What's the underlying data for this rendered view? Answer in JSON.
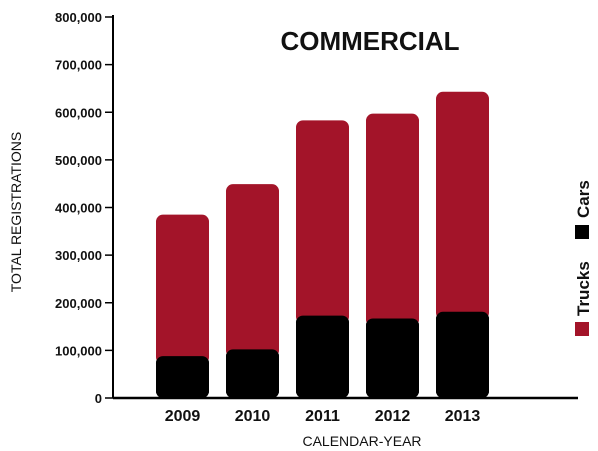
{
  "chart_data": {
    "type": "bar",
    "stacked": true,
    "title": "COMMERCIAL",
    "xlabel": "CALENDAR-YEAR",
    "ylabel": "TOTAL REGISTRATIONS",
    "categories": [
      "2009",
      "2010",
      "2011",
      "2012",
      "2013"
    ],
    "ylim": [
      0,
      800000
    ],
    "yticks": [
      0,
      100000,
      200000,
      300000,
      400000,
      500000,
      600000,
      700000,
      800000
    ],
    "ytick_labels": [
      "0",
      "100,000",
      "200,000",
      "300,000",
      "400,000",
      "500,000",
      "600,000",
      "700,000",
      "800,000"
    ],
    "series": [
      {
        "name": "Cars",
        "color": "#000000",
        "values": [
          88000,
          102000,
          173000,
          167000,
          181000
        ]
      },
      {
        "name": "Trucks",
        "color": "#a31429",
        "values": [
          297000,
          347000,
          410000,
          430000,
          462000
        ]
      }
    ],
    "legend_position": "right, rotated vertical",
    "grid": false
  }
}
